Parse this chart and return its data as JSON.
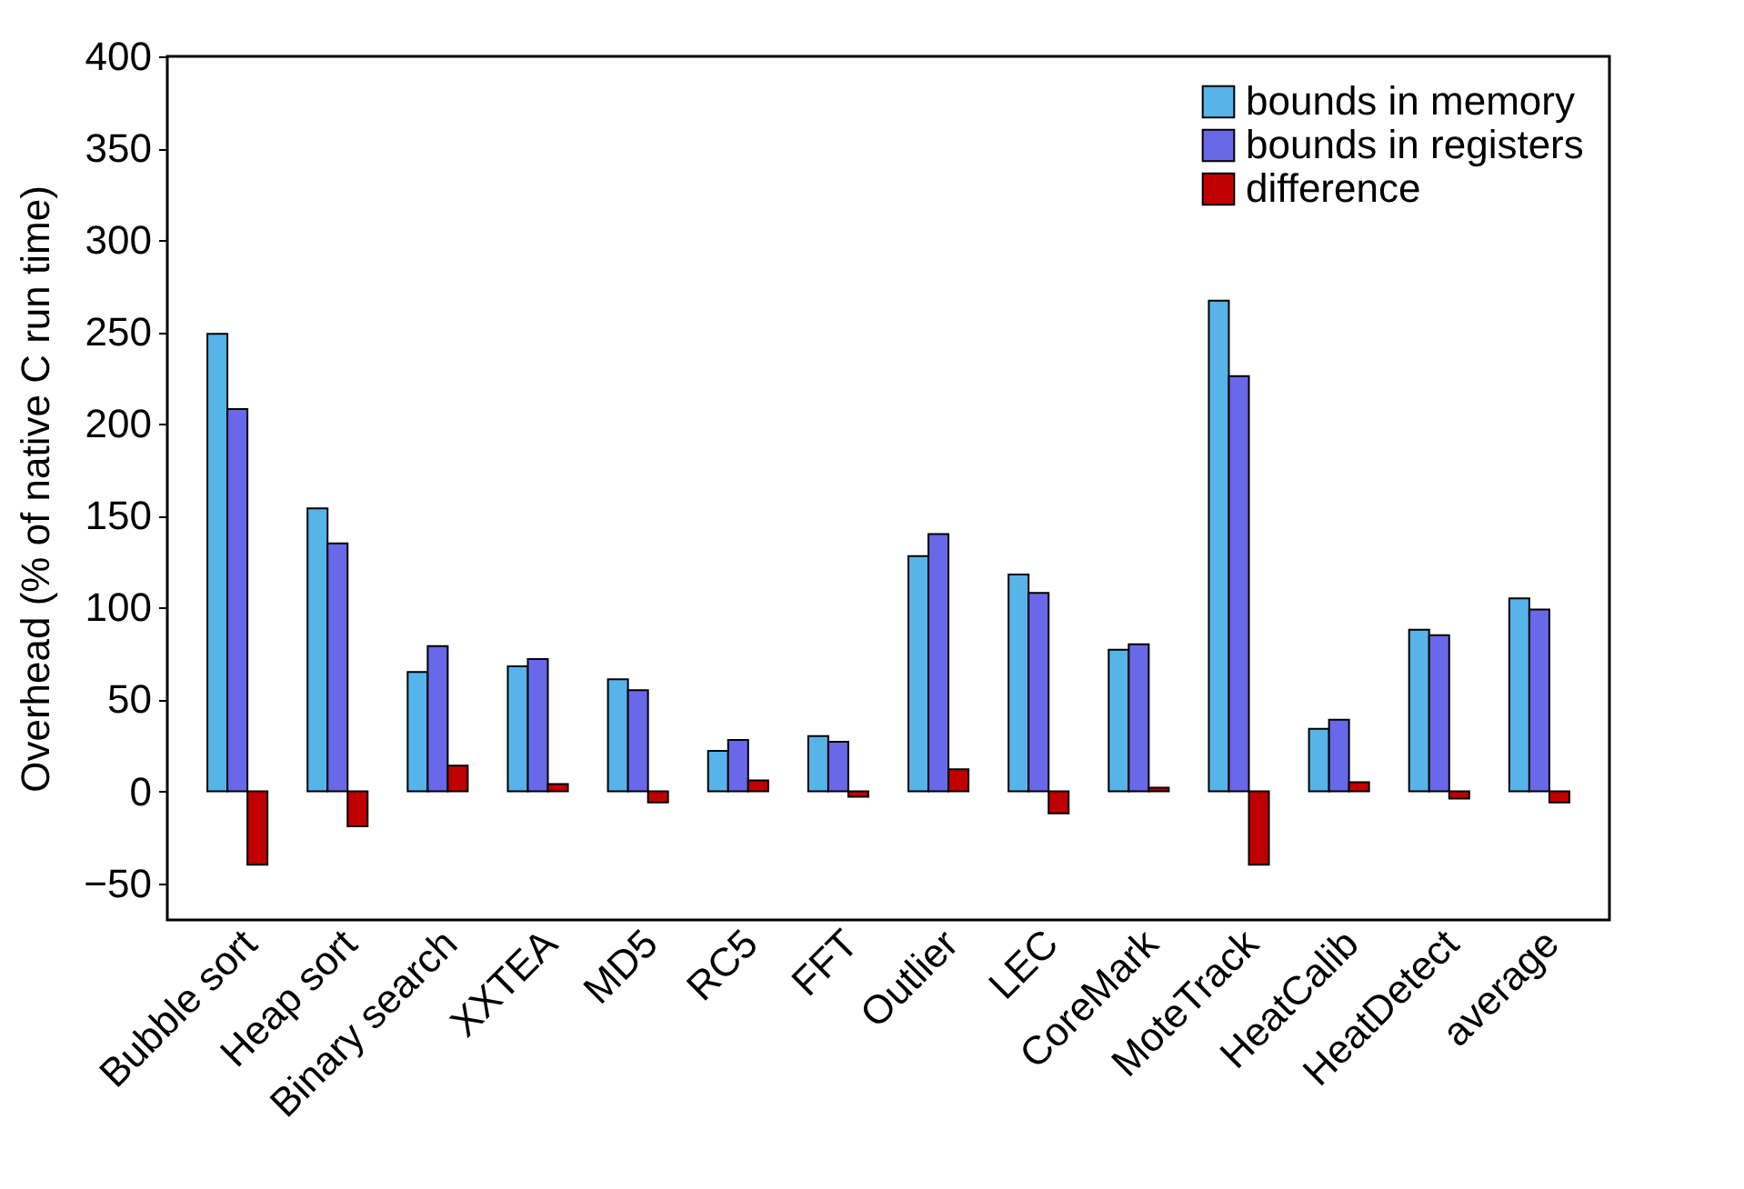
{
  "chart_data": {
    "type": "bar",
    "ylabel": "Overhead (% of native C run time)",
    "categories": [
      "Bubble sort",
      "Heap sort",
      "Binary search",
      "XXTEA",
      "MD5",
      "RC5",
      "FFT",
      "Outlier",
      "LEC",
      "CoreMark",
      "MoteTrack",
      "HeatCalib",
      "HeatDetect",
      "average"
    ],
    "series": [
      {
        "name": "bounds in memory",
        "color": "#56b4e9",
        "values": [
          249,
          154,
          65,
          68,
          61,
          22,
          30,
          128,
          118,
          77,
          267,
          34,
          88,
          105
        ]
      },
      {
        "name": "bounds in registers",
        "color": "#6868e8",
        "values": [
          208,
          135,
          79,
          72,
          55,
          28,
          27,
          140,
          108,
          80,
          226,
          39,
          85,
          99
        ]
      },
      {
        "name": "difference",
        "color": "#c00000",
        "values": [
          -40,
          -19,
          14,
          4,
          -6,
          6,
          -3,
          12,
          -12,
          2,
          -40,
          5,
          -4,
          -6
        ]
      }
    ],
    "ylim": [
      -70,
      400
    ],
    "yticks": [
      -50,
      0,
      50,
      100,
      150,
      200,
      250,
      300,
      350,
      400
    ],
    "legend": "top right",
    "grid": false
  }
}
